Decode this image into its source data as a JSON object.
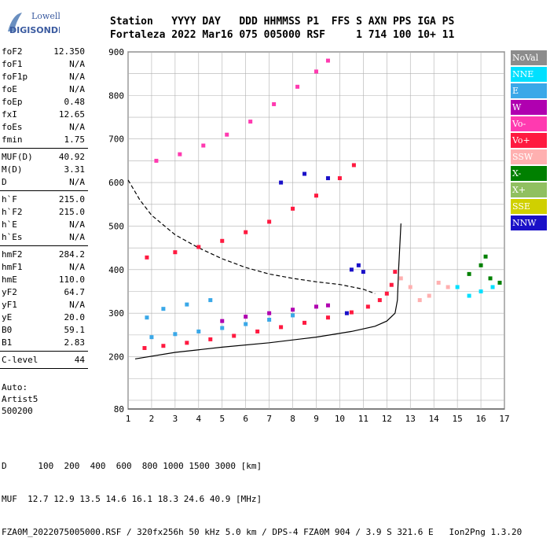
{
  "logo": {
    "line1": "Lowell",
    "line2": "DIGISONDE",
    "colors": [
      "#6a8fc0",
      "#3b5ba0"
    ]
  },
  "header": {
    "line1": "Station   YYYY DAY   DDD HHMMSS P1  FFS S AXN PPS IGA PS",
    "line2": "Fortaleza 2022 Mar16 075 005000 RSF     1 714 100 10+ 11"
  },
  "params": [
    {
      "k": "foF2",
      "v": "12.350"
    },
    {
      "k": "foF1",
      "v": "N/A"
    },
    {
      "k": "foF1p",
      "v": "N/A"
    },
    {
      "k": "foE",
      "v": "N/A"
    },
    {
      "k": "foEp",
      "v": "0.48"
    },
    {
      "k": "fxI",
      "v": "12.65"
    },
    {
      "k": "foEs",
      "v": "N/A"
    },
    {
      "k": "fmin",
      "v": "1.75"
    },
    {
      "sep": true
    },
    {
      "k": "MUF(D)",
      "v": "40.92"
    },
    {
      "k": "M(D)",
      "v": "3.31"
    },
    {
      "k": "D",
      "v": "N/A"
    },
    {
      "sep": true
    },
    {
      "k": "h`F",
      "v": "215.0"
    },
    {
      "k": "h`F2",
      "v": "215.0"
    },
    {
      "k": "h`E",
      "v": "N/A"
    },
    {
      "k": "h`Es",
      "v": "N/A"
    },
    {
      "sep": true
    },
    {
      "k": "hmF2",
      "v": "284.2"
    },
    {
      "k": "hmF1",
      "v": "N/A"
    },
    {
      "k": "hmE",
      "v": "110.0"
    },
    {
      "k": "yF2",
      "v": "64.7"
    },
    {
      "k": "yF1",
      "v": "N/A"
    },
    {
      "k": "yE",
      "v": "20.0"
    },
    {
      "k": "B0",
      "v": "59.1"
    },
    {
      "k": "B1",
      "v": "2.83"
    },
    {
      "sep": true
    },
    {
      "k": "C-level",
      "v": "44"
    },
    {
      "sep": true
    }
  ],
  "auto": {
    "line1": "Auto:",
    "line2": "Artist5",
    "line3": "500200"
  },
  "legend": [
    {
      "label": "NoVal",
      "color": "#8c8c8c"
    },
    {
      "label": "NNE",
      "color": "#00e0ff"
    },
    {
      "label": "E",
      "color": "#3aa8e8"
    },
    {
      "label": "W",
      "color": "#b000b0"
    },
    {
      "label": "Vo-",
      "color": "#ff3ab0"
    },
    {
      "label": "Vo+",
      "color": "#ff1a40"
    },
    {
      "label": "SSW",
      "color": "#ffb0b0"
    },
    {
      "label": "X-",
      "color": "#008000"
    },
    {
      "label": "X+",
      "color": "#90c060"
    },
    {
      "label": "SSE",
      "color": "#d0d000"
    },
    {
      "label": "NNW",
      "color": "#1a10c8"
    }
  ],
  "footer": {
    "line1": "D      100  200  400  600  800 1000 1500 3000 [km]",
    "line2": "MUF  12.7 12.9 13.5 14.6 16.1 18.3 24.6 40.9 [MHz]",
    "line3": "FZA0M_2022075005000.RSF / 320fx256h 50 kHz 5.0 km / DPS-4 FZA0M 904 / 3.9 S 321.6 E   Ion2Png 1.3.20"
  },
  "chart_data": {
    "type": "scatter",
    "xlim": [
      1,
      17
    ],
    "ylim": [
      80,
      900
    ],
    "x_ticks": [
      1,
      2,
      3,
      4,
      5,
      6,
      7,
      8,
      9,
      10,
      11,
      12,
      13,
      14,
      15,
      16,
      17
    ],
    "y_ticks": [
      80,
      200,
      300,
      400,
      500,
      600,
      700,
      800,
      900
    ],
    "grid": true,
    "series": [
      {
        "name": "Vo+",
        "color": "#ff1a40",
        "points": [
          [
            1.7,
            220
          ],
          [
            2.5,
            225
          ],
          [
            3.5,
            232
          ],
          [
            4.5,
            240
          ],
          [
            5.5,
            248
          ],
          [
            6.5,
            258
          ],
          [
            7.5,
            268
          ],
          [
            8.5,
            278
          ],
          [
            9.5,
            290
          ],
          [
            10.5,
            302
          ],
          [
            11.2,
            315
          ],
          [
            11.7,
            330
          ],
          [
            12.0,
            345
          ],
          [
            12.2,
            365
          ],
          [
            12.35,
            395
          ]
        ]
      },
      {
        "name": "Vo+",
        "color": "#ff1a40",
        "points": [
          [
            1.8,
            428
          ],
          [
            3,
            440
          ],
          [
            4,
            452
          ],
          [
            5,
            466
          ],
          [
            6,
            486
          ],
          [
            7,
            510
          ],
          [
            8,
            540
          ],
          [
            9,
            570
          ],
          [
            10,
            610
          ],
          [
            10.6,
            640
          ]
        ]
      },
      {
        "name": "Vo-",
        "color": "#ff3ab0",
        "points": [
          [
            2.2,
            650
          ],
          [
            3.2,
            665
          ],
          [
            4.2,
            685
          ],
          [
            5.2,
            710
          ],
          [
            6.2,
            740
          ],
          [
            7.2,
            780
          ],
          [
            8.2,
            820
          ],
          [
            9,
            855
          ],
          [
            9.5,
            880
          ]
        ]
      },
      {
        "name": "W",
        "color": "#b000b0",
        "points": [
          [
            5,
            282
          ],
          [
            6,
            292
          ],
          [
            7,
            300
          ],
          [
            8,
            308
          ],
          [
            9,
            315
          ],
          [
            9.5,
            318
          ]
        ]
      },
      {
        "name": "E",
        "color": "#3aa8e8",
        "points": [
          [
            2,
            245
          ],
          [
            3,
            252
          ],
          [
            4,
            258
          ],
          [
            5,
            266
          ],
          [
            6,
            275
          ],
          [
            7,
            285
          ],
          [
            8,
            295
          ],
          [
            1.8,
            290
          ],
          [
            2.5,
            310
          ],
          [
            3.5,
            320
          ],
          [
            4.5,
            330
          ]
        ]
      },
      {
        "name": "NNW",
        "color": "#1a10c8",
        "points": [
          [
            7.5,
            600
          ],
          [
            8.5,
            620
          ],
          [
            9.5,
            610
          ],
          [
            10.5,
            400
          ],
          [
            10.8,
            410
          ],
          [
            11,
            395
          ],
          [
            10.3,
            300
          ]
        ]
      },
      {
        "name": "SSW",
        "color": "#ffb0b0",
        "points": [
          [
            12.6,
            380
          ],
          [
            13.0,
            360
          ],
          [
            13.4,
            330
          ],
          [
            13.8,
            340
          ],
          [
            14.2,
            370
          ],
          [
            14.6,
            360
          ]
        ]
      },
      {
        "name": "X-",
        "color": "#008000",
        "points": [
          [
            15.5,
            390
          ],
          [
            16.0,
            410
          ],
          [
            16.4,
            380
          ],
          [
            16.8,
            370
          ],
          [
            16.2,
            430
          ]
        ]
      },
      {
        "name": "NNE",
        "color": "#00e0ff",
        "points": [
          [
            15,
            360
          ],
          [
            15.5,
            340
          ],
          [
            16,
            350
          ],
          [
            16.5,
            360
          ]
        ]
      }
    ],
    "curves": [
      {
        "name": "profile",
        "style": "solid",
        "color": "#000000",
        "points": [
          [
            1.3,
            195
          ],
          [
            3,
            210
          ],
          [
            5,
            222
          ],
          [
            7,
            232
          ],
          [
            9,
            245
          ],
          [
            10.5,
            258
          ],
          [
            11.5,
            270
          ],
          [
            12.0,
            282
          ],
          [
            12.35,
            300
          ],
          [
            12.45,
            330
          ],
          [
            12.5,
            400
          ],
          [
            12.6,
            506
          ]
        ]
      },
      {
        "name": "muf",
        "style": "dashed",
        "color": "#000000",
        "points": [
          [
            1.0,
            606
          ],
          [
            1.5,
            560
          ],
          [
            2,
            525
          ],
          [
            3,
            480
          ],
          [
            4,
            450
          ],
          [
            5,
            425
          ],
          [
            6,
            405
          ],
          [
            7,
            390
          ],
          [
            8,
            380
          ],
          [
            9,
            372
          ],
          [
            10,
            366
          ],
          [
            11,
            355
          ],
          [
            11.5,
            345
          ]
        ]
      }
    ]
  }
}
